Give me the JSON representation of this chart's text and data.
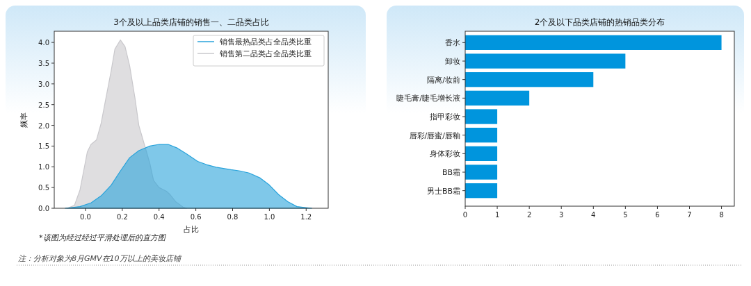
{
  "chart_data": [
    {
      "type": "area",
      "title": "3个及以上品类店铺的销售一、二品类占比",
      "xlabel": "占比",
      "ylabel": "频率",
      "xlim": [
        -0.17,
        1.32
      ],
      "xticks": [
        {
          "value": 0,
          "label": "0.0"
        },
        0.2,
        0.4,
        0.6,
        0.8,
        {
          "value": 1,
          "label": "1.0"
        },
        1.2
      ],
      "ylim": [
        0,
        4.27
      ],
      "yticks": [
        {
          "value": 0,
          "label": "0.0"
        },
        0.5,
        {
          "value": 1,
          "label": "1.0"
        },
        1.5,
        {
          "value": 2,
          "label": "2.0"
        },
        2.5,
        {
          "value": 3,
          "label": "3.0"
        },
        3.5,
        {
          "value": 4,
          "label": "4.0"
        }
      ],
      "legend": "top right",
      "series": [
        {
          "name": "销售最热品类占全品类比重",
          "color": "#29a3db",
          "x": [
            -0.11,
            -0.03,
            0.03,
            0.085,
            0.14,
            0.19,
            0.24,
            0.29,
            0.35,
            0.4,
            0.45,
            0.5,
            0.55,
            0.61,
            0.66,
            0.71,
            0.79,
            0.84,
            0.89,
            0.95,
            1.0,
            1.05,
            1.1,
            1.15,
            1.23
          ],
          "values": [
            0,
            0.04,
            0.13,
            0.3,
            0.56,
            0.9,
            1.22,
            1.39,
            1.5,
            1.54,
            1.54,
            1.45,
            1.31,
            1.13,
            1.05,
            0.99,
            0.93,
            0.9,
            0.85,
            0.73,
            0.56,
            0.33,
            0.16,
            0.04,
            0
          ]
        },
        {
          "name": "销售第二品类占全品类比重",
          "color": "#c9c8cc",
          "x": [
            -0.1,
            -0.06,
            -0.03,
            -0.01,
            0.01,
            0.03,
            0.06,
            0.085,
            0.11,
            0.14,
            0.16,
            0.19,
            0.215,
            0.24,
            0.27,
            0.29,
            0.32,
            0.35,
            0.37,
            0.4,
            0.44,
            0.46,
            0.49,
            0.53,
            0.55
          ],
          "values": [
            0,
            0.07,
            0.44,
            0.9,
            1.36,
            1.54,
            1.65,
            2.05,
            2.63,
            3.32,
            3.84,
            4.06,
            3.9,
            3.44,
            2.63,
            2.0,
            1.54,
            1.08,
            0.67,
            0.5,
            0.41,
            0.33,
            0.16,
            0.03,
            0
          ]
        }
      ],
      "annotations": [
        "*该图为经过经过平滑处理后的直方图",
        "注：分析对象为8月GMV在10万以上的美妆店铺"
      ]
    },
    {
      "type": "bar",
      "orientation": "horizontal",
      "title": "2个及以下品类店铺的热销品类分布",
      "categories": [
        "香水",
        "卸妆",
        "隔离/妆前",
        "睫毛膏/睫毛增长液",
        "指甲彩妆",
        "唇彩/唇蜜/唇釉",
        "身体彩妆",
        "BB霜",
        "男士BB霜"
      ],
      "values": [
        8,
        5,
        4,
        2,
        1,
        1,
        1,
        1,
        1
      ],
      "color": "#0095dd",
      "xlim": [
        0,
        8.4
      ],
      "xticks": [
        0,
        1,
        2,
        3,
        4,
        5,
        6,
        7,
        8
      ]
    }
  ]
}
